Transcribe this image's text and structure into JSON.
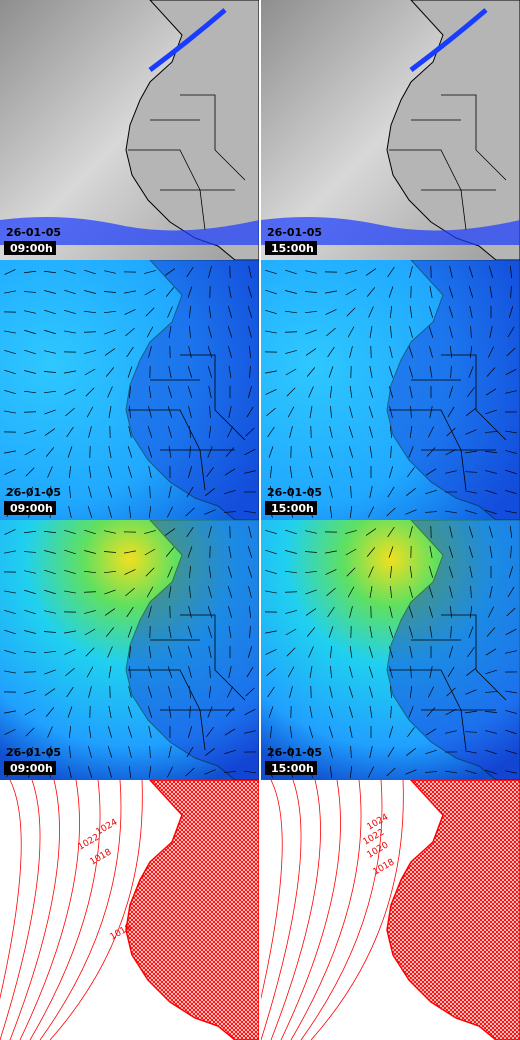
{
  "panels": [
    {
      "date": "26-01-05",
      "time": "09:00h"
    },
    {
      "date": "26-01-05",
      "time": "15:00h"
    },
    {
      "date": "26-01-05",
      "time": "09:00h"
    },
    {
      "date": "26-01-05",
      "time": "15:00h"
    },
    {
      "date": "26-01-05",
      "time": "09:00h"
    },
    {
      "date": "26-01-05",
      "time": "15:00h"
    }
  ],
  "isobar_labels": {
    "left": [
      "1024",
      "1022",
      "1018",
      "1016"
    ],
    "right": [
      "1024",
      "1022",
      "1020",
      "1018"
    ]
  }
}
